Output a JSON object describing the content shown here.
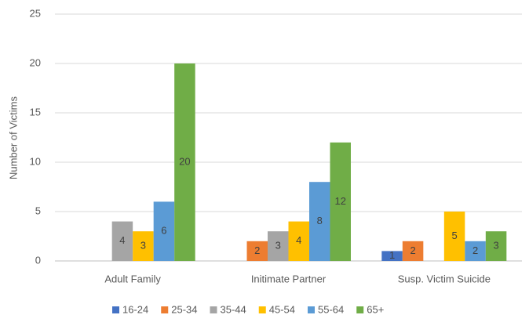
{
  "chart_data": {
    "type": "bar",
    "y_label": "Number of Victims",
    "categories": [
      "Adult Family",
      "Initimate Partner",
      "Susp. Victim Suicide"
    ],
    "series": [
      {
        "name": "16-24",
        "color": "#4472c4",
        "values": [
          null,
          null,
          1
        ]
      },
      {
        "name": "25-34",
        "color": "#ed7d31",
        "values": [
          null,
          2,
          2
        ]
      },
      {
        "name": "35-44",
        "color": "#a5a5a5",
        "values": [
          4,
          3,
          null
        ]
      },
      {
        "name": "45-54",
        "color": "#ffc000",
        "values": [
          3,
          4,
          5
        ]
      },
      {
        "name": "55-64",
        "color": "#5b9bd5",
        "values": [
          6,
          8,
          2
        ]
      },
      {
        "name": "65+",
        "color": "#70ad47",
        "values": [
          20,
          12,
          3
        ]
      }
    ],
    "ylim": [
      0,
      25
    ],
    "yticks": [
      0,
      5,
      10,
      15,
      20,
      25
    ],
    "grid": true,
    "legend": "bottom"
  }
}
